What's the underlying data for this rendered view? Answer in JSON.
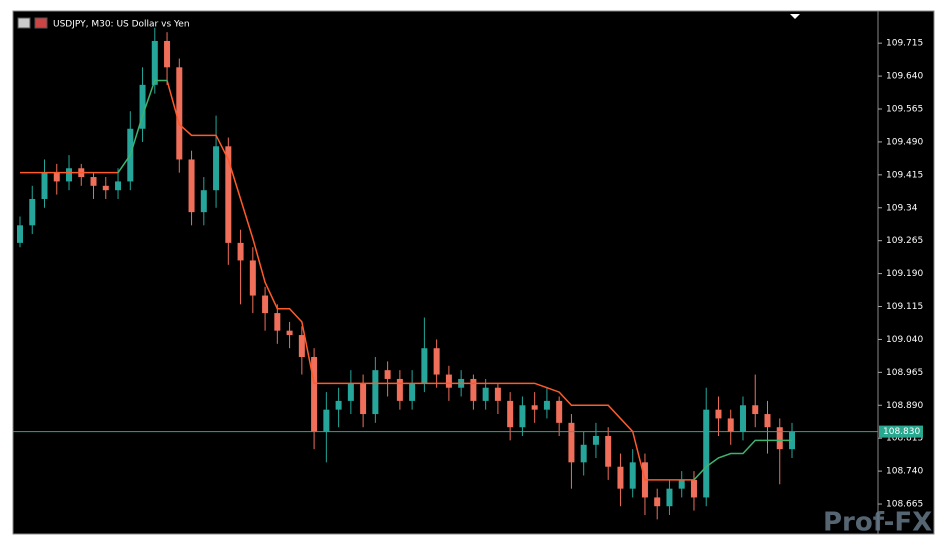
{
  "chart_data": {
    "type": "candlestick",
    "title": "USDJPY, M30:  US Dollar vs Yen",
    "ylim": [
      108.599,
      109.786
    ],
    "yticks": [
      109.715,
      {
        "value": 109.64,
        "label": "109.640"
      },
      109.565,
      {
        "value": 109.49,
        "label": "109.490"
      },
      109.415,
      109.34,
      109.265,
      {
        "value": 109.19,
        "label": "109.190"
      },
      109.115,
      {
        "value": 109.04,
        "label": "109.040"
      },
      108.965,
      {
        "value": 108.89,
        "label": "108.890"
      },
      108.815,
      {
        "value": 108.74,
        "label": "108.740"
      },
      108.665
    ],
    "open": [
      109.26,
      109.3,
      109.36,
      109.42,
      109.4,
      109.43,
      109.41,
      109.39,
      109.38,
      109.4,
      109.52,
      109.62,
      109.72,
      109.66,
      109.45,
      109.33,
      109.38,
      109.48,
      109.26,
      109.22,
      109.14,
      109.1,
      109.06,
      109.05,
      109.0,
      108.83,
      108.88,
      108.9,
      108.94,
      108.87,
      108.97,
      108.95,
      108.9,
      108.94,
      109.02,
      108.96,
      108.93,
      108.95,
      108.9,
      108.93,
      108.9,
      108.84,
      108.89,
      108.88,
      108.9,
      108.85,
      108.76,
      108.8,
      108.82,
      108.75,
      108.7,
      108.76,
      108.68,
      108.66,
      108.7,
      108.72,
      108.68,
      108.88,
      108.86,
      108.83,
      108.89,
      108.87,
      108.84,
      108.79
    ],
    "high": [
      109.32,
      109.39,
      109.45,
      109.44,
      109.46,
      109.44,
      109.42,
      109.41,
      109.43,
      109.56,
      109.66,
      109.75,
      109.74,
      109.68,
      109.47,
      109.41,
      109.55,
      109.5,
      109.29,
      109.25,
      109.16,
      109.12,
      109.08,
      109.07,
      109.02,
      108.92,
      108.93,
      108.97,
      108.96,
      109.0,
      108.99,
      108.97,
      108.97,
      109.09,
      109.04,
      108.98,
      108.97,
      108.96,
      108.95,
      108.94,
      108.92,
      108.91,
      108.92,
      108.93,
      108.91,
      108.87,
      108.83,
      108.85,
      108.84,
      108.78,
      108.79,
      108.78,
      108.7,
      108.72,
      108.74,
      108.74,
      108.93,
      108.91,
      108.88,
      108.91,
      108.96,
      108.9,
      108.86,
      108.85
    ],
    "low": [
      109.25,
      109.28,
      109.34,
      109.37,
      109.38,
      109.39,
      109.36,
      109.36,
      109.36,
      109.38,
      109.49,
      109.6,
      109.62,
      109.42,
      109.3,
      109.3,
      109.34,
      109.21,
      109.12,
      109.1,
      109.06,
      109.03,
      109.02,
      108.96,
      108.79,
      108.76,
      108.84,
      108.87,
      108.84,
      108.85,
      108.91,
      108.88,
      108.88,
      108.92,
      108.93,
      108.9,
      108.91,
      108.88,
      108.88,
      108.87,
      108.81,
      108.82,
      108.85,
      108.86,
      108.82,
      108.7,
      108.73,
      108.77,
      108.72,
      108.66,
      108.68,
      108.64,
      108.63,
      108.64,
      108.68,
      108.65,
      108.66,
      108.82,
      108.8,
      108.81,
      108.84,
      108.78,
      108.71,
      108.77
    ],
    "close": [
      109.3,
      109.36,
      109.42,
      109.4,
      109.43,
      109.41,
      109.39,
      109.38,
      109.4,
      109.52,
      109.62,
      109.72,
      109.66,
      109.45,
      109.33,
      109.38,
      109.48,
      109.26,
      109.22,
      109.14,
      109.1,
      109.06,
      109.05,
      109.0,
      108.83,
      108.88,
      108.9,
      108.94,
      108.87,
      108.97,
      108.95,
      108.9,
      108.94,
      109.02,
      108.96,
      108.93,
      108.95,
      108.9,
      108.93,
      108.9,
      108.84,
      108.89,
      108.88,
      108.9,
      108.85,
      108.76,
      108.8,
      108.82,
      108.75,
      108.7,
      108.76,
      108.68,
      108.66,
      108.7,
      108.72,
      108.68,
      108.88,
      108.86,
      108.83,
      108.89,
      108.87,
      108.84,
      108.79,
      108.83
    ],
    "up_color": "#26a69a",
    "down_color": "#ef6f5a",
    "lines": [
      {
        "color": "#ff5a2a",
        "values": [
          109.42,
          109.42,
          109.42,
          109.42,
          109.42,
          109.42,
          109.42,
          109.42,
          109.42,
          null,
          null,
          null,
          109.63,
          109.53,
          109.505,
          109.505,
          109.505,
          109.45,
          109.36,
          109.27,
          109.17,
          109.11,
          109.11,
          109.08,
          108.94,
          108.94,
          108.94,
          108.94,
          108.94,
          108.94,
          108.94,
          108.94,
          108.94,
          108.94,
          108.94,
          108.94,
          108.94,
          108.94,
          108.94,
          108.94,
          108.94,
          108.94,
          108.94,
          108.93,
          108.92,
          108.89,
          108.89,
          108.89,
          108.89,
          108.86,
          108.83,
          108.72,
          108.72,
          108.72,
          108.72,
          108.72,
          null,
          null,
          null,
          null,
          null,
          null,
          null,
          null
        ]
      },
      {
        "color": "#3cb371",
        "values": [
          null,
          null,
          null,
          null,
          null,
          null,
          null,
          null,
          109.42,
          109.46,
          109.55,
          109.63,
          109.63,
          null,
          null,
          null,
          null,
          null,
          null,
          null,
          null,
          null,
          null,
          null,
          null,
          null,
          null,
          null,
          null,
          null,
          null,
          null,
          null,
          null,
          null,
          null,
          null,
          null,
          null,
          null,
          null,
          null,
          null,
          null,
          null,
          null,
          null,
          null,
          null,
          null,
          null,
          null,
          null,
          null,
          null,
          108.72,
          108.75,
          108.77,
          108.78,
          108.78,
          108.81,
          108.81,
          108.81,
          108.81
        ]
      }
    ],
    "price_line": {
      "value": 108.83,
      "label": "108.830",
      "color": "#2aa88f"
    },
    "watermark": "Prof-FX"
  }
}
